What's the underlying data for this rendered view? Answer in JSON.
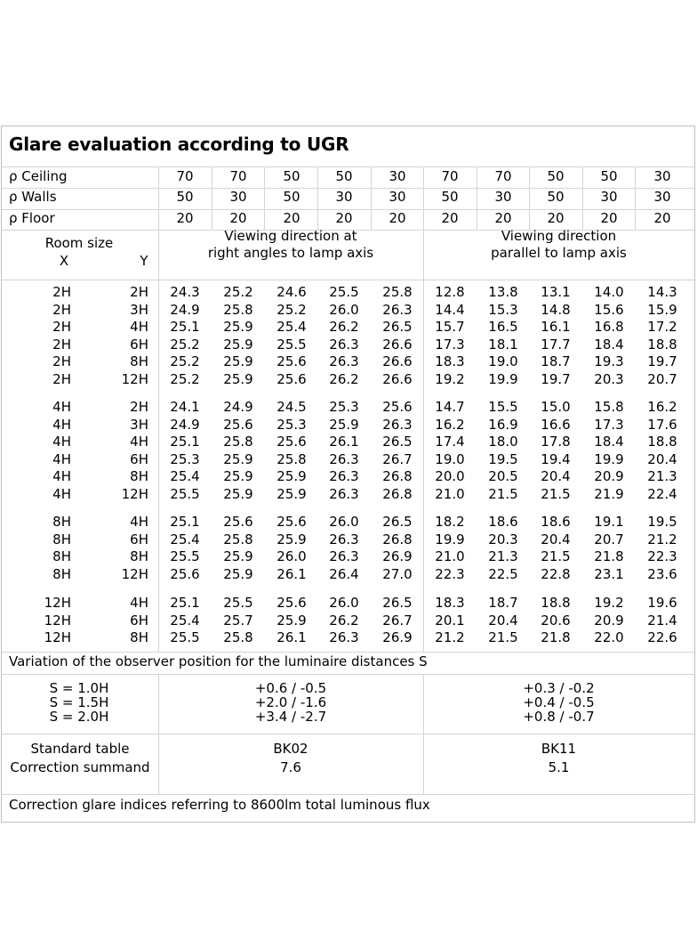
{
  "title": "Glare evaluation according to UGR",
  "reflectances": [
    {
      "label": "ρ Ceiling",
      "values": [
        "70",
        "70",
        "50",
        "50",
        "30",
        "70",
        "70",
        "50",
        "50",
        "30"
      ]
    },
    {
      "label": "ρ Walls",
      "values": [
        "50",
        "30",
        "50",
        "30",
        "30",
        "50",
        "30",
        "50",
        "30",
        "30"
      ]
    },
    {
      "label": "ρ Floor",
      "values": [
        "20",
        "20",
        "20",
        "20",
        "20",
        "20",
        "20",
        "20",
        "20",
        "20"
      ]
    }
  ],
  "header": {
    "room_size": "Room size",
    "x": "X",
    "y": "Y",
    "dir_right": [
      "Viewing direction at",
      "right angles to lamp axis"
    ],
    "dir_parallel": [
      "Viewing direction",
      "parallel to lamp axis"
    ]
  },
  "groups": [
    [
      {
        "x": "2H",
        "y": "2H",
        "right": [
          "24.3",
          "25.2",
          "24.6",
          "25.5",
          "25.8"
        ],
        "parallel": [
          "12.8",
          "13.8",
          "13.1",
          "14.0",
          "14.3"
        ]
      },
      {
        "x": "2H",
        "y": "3H",
        "right": [
          "24.9",
          "25.8",
          "25.2",
          "26.0",
          "26.3"
        ],
        "parallel": [
          "14.4",
          "15.3",
          "14.8",
          "15.6",
          "15.9"
        ]
      },
      {
        "x": "2H",
        "y": "4H",
        "right": [
          "25.1",
          "25.9",
          "25.4",
          "26.2",
          "26.5"
        ],
        "parallel": [
          "15.7",
          "16.5",
          "16.1",
          "16.8",
          "17.2"
        ]
      },
      {
        "x": "2H",
        "y": "6H",
        "right": [
          "25.2",
          "25.9",
          "25.5",
          "26.3",
          "26.6"
        ],
        "parallel": [
          "17.3",
          "18.1",
          "17.7",
          "18.4",
          "18.8"
        ]
      },
      {
        "x": "2H",
        "y": "8H",
        "right": [
          "25.2",
          "25.9",
          "25.6",
          "26.3",
          "26.6"
        ],
        "parallel": [
          "18.3",
          "19.0",
          "18.7",
          "19.3",
          "19.7"
        ]
      },
      {
        "x": "2H",
        "y": "12H",
        "right": [
          "25.2",
          "25.9",
          "25.6",
          "26.2",
          "26.6"
        ],
        "parallel": [
          "19.2",
          "19.9",
          "19.7",
          "20.3",
          "20.7"
        ]
      }
    ],
    [
      {
        "x": "4H",
        "y": "2H",
        "right": [
          "24.1",
          "24.9",
          "24.5",
          "25.3",
          "25.6"
        ],
        "parallel": [
          "14.7",
          "15.5",
          "15.0",
          "15.8",
          "16.2"
        ]
      },
      {
        "x": "4H",
        "y": "3H",
        "right": [
          "24.9",
          "25.6",
          "25.3",
          "25.9",
          "26.3"
        ],
        "parallel": [
          "16.2",
          "16.9",
          "16.6",
          "17.3",
          "17.6"
        ]
      },
      {
        "x": "4H",
        "y": "4H",
        "right": [
          "25.1",
          "25.8",
          "25.6",
          "26.1",
          "26.5"
        ],
        "parallel": [
          "17.4",
          "18.0",
          "17.8",
          "18.4",
          "18.8"
        ]
      },
      {
        "x": "4H",
        "y": "6H",
        "right": [
          "25.3",
          "25.9",
          "25.8",
          "26.3",
          "26.7"
        ],
        "parallel": [
          "19.0",
          "19.5",
          "19.4",
          "19.9",
          "20.4"
        ]
      },
      {
        "x": "4H",
        "y": "8H",
        "right": [
          "25.4",
          "25.9",
          "25.9",
          "26.3",
          "26.8"
        ],
        "parallel": [
          "20.0",
          "20.5",
          "20.4",
          "20.9",
          "21.3"
        ]
      },
      {
        "x": "4H",
        "y": "12H",
        "right": [
          "25.5",
          "25.9",
          "25.9",
          "26.3",
          "26.8"
        ],
        "parallel": [
          "21.0",
          "21.5",
          "21.5",
          "21.9",
          "22.4"
        ]
      }
    ],
    [
      {
        "x": "8H",
        "y": "4H",
        "right": [
          "25.1",
          "25.6",
          "25.6",
          "26.0",
          "26.5"
        ],
        "parallel": [
          "18.2",
          "18.6",
          "18.6",
          "19.1",
          "19.5"
        ]
      },
      {
        "x": "8H",
        "y": "6H",
        "right": [
          "25.4",
          "25.8",
          "25.9",
          "26.3",
          "26.8"
        ],
        "parallel": [
          "19.9",
          "20.3",
          "20.4",
          "20.7",
          "21.2"
        ]
      },
      {
        "x": "8H",
        "y": "8H",
        "right": [
          "25.5",
          "25.9",
          "26.0",
          "26.3",
          "26.9"
        ],
        "parallel": [
          "21.0",
          "21.3",
          "21.5",
          "21.8",
          "22.3"
        ]
      },
      {
        "x": "8H",
        "y": "12H",
        "right": [
          "25.6",
          "25.9",
          "26.1",
          "26.4",
          "27.0"
        ],
        "parallel": [
          "22.3",
          "22.5",
          "22.8",
          "23.1",
          "23.6"
        ]
      }
    ],
    [
      {
        "x": "12H",
        "y": "4H",
        "right": [
          "25.1",
          "25.5",
          "25.6",
          "26.0",
          "26.5"
        ],
        "parallel": [
          "18.3",
          "18.7",
          "18.8",
          "19.2",
          "19.6"
        ]
      },
      {
        "x": "12H",
        "y": "6H",
        "right": [
          "25.4",
          "25.7",
          "25.9",
          "26.2",
          "26.7"
        ],
        "parallel": [
          "20.1",
          "20.4",
          "20.6",
          "20.9",
          "21.4"
        ]
      },
      {
        "x": "12H",
        "y": "8H",
        "right": [
          "25.5",
          "25.8",
          "26.1",
          "26.3",
          "26.9"
        ],
        "parallel": [
          "21.2",
          "21.5",
          "21.8",
          "22.0",
          "22.6"
        ]
      }
    ]
  ],
  "variation": {
    "label": "Variation of the observer position for the luminaire distances S",
    "rows": [
      {
        "s": "S = 1.0H",
        "right": "+0.6 / -0.5",
        "parallel": "+0.3 / -0.2"
      },
      {
        "s": "S = 1.5H",
        "right": "+2.0 / -1.6",
        "parallel": "+0.4 / -0.5"
      },
      {
        "s": "S = 2.0H",
        "right": "+3.4 / -2.7",
        "parallel": "+0.8 / -0.7"
      }
    ]
  },
  "standard": {
    "label_table": "Standard table",
    "label_summand": "Correction summand",
    "right_table": "BK02",
    "right_summand": "7.6",
    "parallel_table": "BK11",
    "parallel_summand": "5.1"
  },
  "footer": "Correction glare indices referring to 8600lm total luminous flux"
}
